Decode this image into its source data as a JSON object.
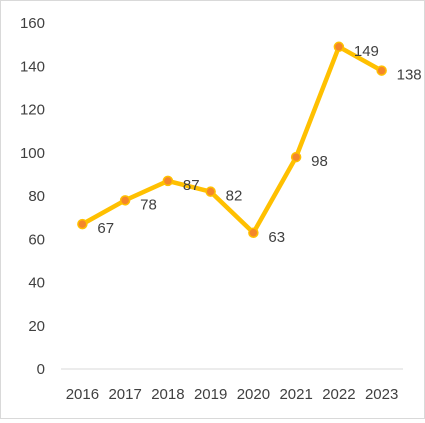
{
  "chart_data": {
    "type": "line",
    "title": "",
    "xlabel": "",
    "ylabel": "",
    "categories": [
      "2016",
      "2017",
      "2018",
      "2019",
      "2020",
      "2021",
      "2022",
      "2023"
    ],
    "series": [
      {
        "values": [
          67,
          78,
          87,
          82,
          63,
          98,
          149,
          138
        ]
      }
    ],
    "data_labels": [
      "67",
      "78",
      "87",
      "82",
      "63",
      "98",
      "149",
      "138"
    ],
    "ylim": [
      0,
      160
    ],
    "yticks": [
      "0",
      "20",
      "40",
      "60",
      "80",
      "100",
      "120",
      "140",
      "160"
    ],
    "grid": false,
    "legend": "none",
    "colors": {
      "line": "#FFC000",
      "marker_fill": "#F4862A",
      "axis": "#d9d9d9",
      "text": "#404040"
    }
  }
}
